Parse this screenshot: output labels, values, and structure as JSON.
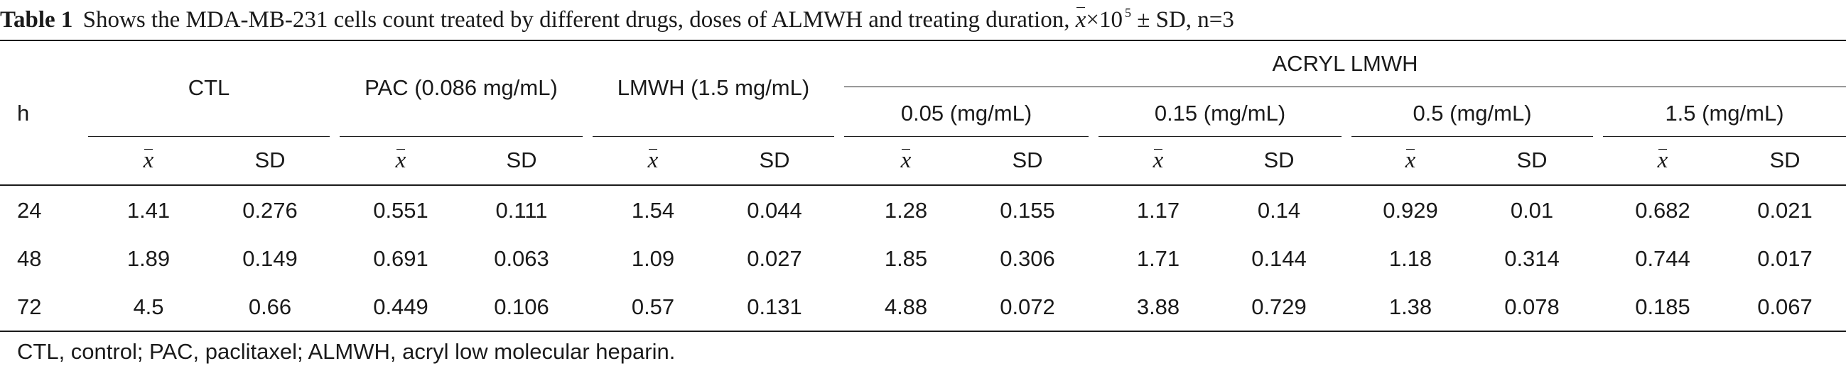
{
  "caption": {
    "label": "Table 1",
    "text": "Shows the MDA-MB-231 cells count treated by different drugs, doses of ALMWH and treating duration,",
    "mean_symbol": "x",
    "mult": "×10",
    "exponent": "5",
    "suffix": "± SD, n=3"
  },
  "header": {
    "row_label": "h",
    "groups": [
      "CTL",
      "PAC (0.086 mg/mL)",
      "LMWH (1.5 mg/mL)"
    ],
    "acryl_group": "ACRYL LMWH",
    "acryl_doses": [
      "0.05 (mg/mL)",
      "0.15 (mg/mL)",
      "0.5 (mg/mL)",
      "1.5 (mg/mL)"
    ],
    "mean_label": "x",
    "sd_label": "SD"
  },
  "rows": [
    {
      "h": "24",
      "values": [
        "1.41",
        "0.276",
        "0.551",
        "0.111",
        "1.54",
        "0.044",
        "1.28",
        "0.155",
        "1.17",
        "0.14",
        "0.929",
        "0.01",
        "0.682",
        "0.021"
      ]
    },
    {
      "h": "48",
      "values": [
        "1.89",
        "0.149",
        "0.691",
        "0.063",
        "1.09",
        "0.027",
        "1.85",
        "0.306",
        "1.71",
        "0.144",
        "1.18",
        "0.314",
        "0.744",
        "0.017"
      ]
    },
    {
      "h": "72",
      "values": [
        "4.5",
        "0.66",
        "0.449",
        "0.106",
        "0.57",
        "0.131",
        "4.88",
        "0.072",
        "3.88",
        "0.729",
        "1.38",
        "0.078",
        "0.185",
        "0.067"
      ]
    }
  ],
  "footnote": "CTL, control; PAC, paclitaxel; ALMWH, acryl low molecular heparin."
}
